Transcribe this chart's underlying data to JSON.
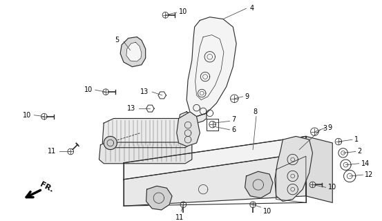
{
  "bg_color": "#ffffff",
  "lc": "#2a2a2a",
  "figsize": [
    5.53,
    3.2
  ],
  "dpi": 100,
  "label_fs": 7,
  "bold_label_fs": 7.5
}
